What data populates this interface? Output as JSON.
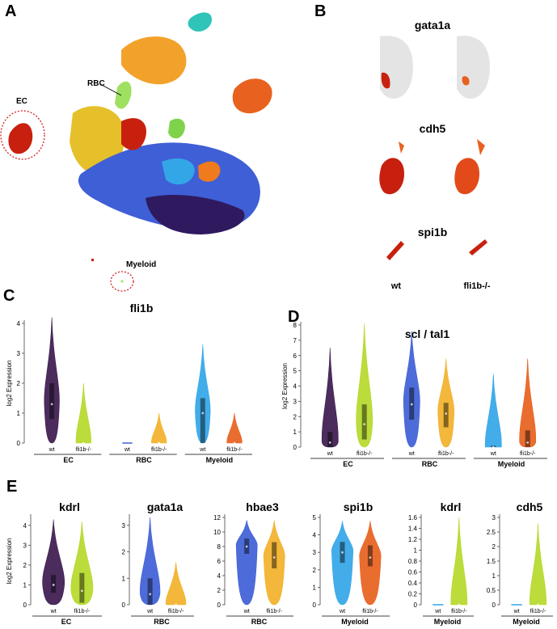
{
  "panels": {
    "A": {
      "label": "A",
      "annotations": {
        "ec": "EC",
        "rbc": "RBC",
        "myeloid": "Myeloid"
      }
    },
    "B": {
      "label": "B",
      "genes": [
        "gata1a",
        "cdh5",
        "spi1b"
      ],
      "conditions": [
        "wt",
        "fli1b-/-"
      ]
    },
    "C": {
      "label": "C"
    },
    "D": {
      "label": "D"
    },
    "E": {
      "label": "E"
    }
  },
  "colors": {
    "wt_EC": "#3d1a4f",
    "mut_EC": "#b5d92a",
    "wt_RBC": "#3f5fd6",
    "mut_RBC": "#f2b12a",
    "wt_Myeloid": "#33a6e8",
    "mut_Myeloid": "#e8611e",
    "umap_red": "#c8200e",
    "umap_gray": "#d8d8d8"
  },
  "chart_data": [
    {
      "type": "violin",
      "panel": "C",
      "title": "fli1b",
      "ylabel": "log2 Expression",
      "ylim": [
        0,
        4
      ],
      "yticks": [
        0,
        1,
        2,
        3,
        4
      ],
      "groups": [
        {
          "name": "EC",
          "violins": [
            {
              "label": "wt",
              "max": 4.2,
              "median": 1.3,
              "q1": 0.8,
              "q3": 2.0
            },
            {
              "label": "fli1b-/-",
              "max": 2.0,
              "median": 0.0,
              "q1": 0.0,
              "q3": 0.0
            }
          ]
        },
        {
          "name": "RBC",
          "violins": [
            {
              "label": "wt",
              "max": 0.0,
              "median": 0.0,
              "q1": 0.0,
              "q3": 0.0
            },
            {
              "label": "fli1b-/-",
              "max": 1.0,
              "median": 0.0,
              "q1": 0.0,
              "q3": 0.0
            }
          ]
        },
        {
          "name": "Myeloid",
          "violins": [
            {
              "label": "wt",
              "max": 3.3,
              "median": 1.0,
              "q1": 0.0,
              "q3": 1.5
            },
            {
              "label": "fli1b-/-",
              "max": 1.0,
              "median": 0.0,
              "q1": 0.0,
              "q3": 0.0
            }
          ]
        }
      ]
    },
    {
      "type": "violin",
      "panel": "D",
      "title": "scl / tal1",
      "ylabel": "log2 Expression",
      "ylim": [
        0,
        8
      ],
      "yticks": [
        0,
        1,
        2,
        3,
        4,
        5,
        6,
        7,
        8
      ],
      "groups": [
        {
          "name": "EC",
          "violins": [
            {
              "label": "wt",
              "max": 6.5,
              "median": 0.3,
              "q1": 0.0,
              "q3": 1.0
            },
            {
              "label": "fli1b-/-",
              "max": 8.1,
              "median": 1.5,
              "q1": 0.5,
              "q3": 2.8
            }
          ]
        },
        {
          "name": "RBC",
          "violins": [
            {
              "label": "wt",
              "max": 7.6,
              "median": 2.8,
              "q1": 1.8,
              "q3": 3.9
            },
            {
              "label": "fli1b-/-",
              "max": 5.8,
              "median": 2.2,
              "q1": 1.3,
              "q3": 2.9
            }
          ]
        },
        {
          "name": "Myeloid",
          "violins": [
            {
              "label": "wt",
              "max": 4.8,
              "median": 0.0,
              "q1": 0.0,
              "q3": 0.1
            },
            {
              "label": "fli1b-/-",
              "max": 5.8,
              "median": 0.3,
              "q1": 0.0,
              "q3": 1.1
            }
          ]
        }
      ]
    },
    {
      "type": "violin",
      "panel": "E",
      "title": "kdrl",
      "ylabel": "log2 Expression",
      "ylim": [
        0,
        4.4
      ],
      "yticks": [
        0,
        1,
        2,
        3,
        4
      ],
      "group": "EC",
      "violins": [
        {
          "label": "wt",
          "color": "wt_EC",
          "max": 4.3,
          "median": 1.0,
          "q1": 0.6,
          "q3": 1.5
        },
        {
          "label": "fli1b-/-",
          "color": "mut_EC",
          "max": 4.2,
          "median": 0.7,
          "q1": 0.1,
          "q3": 1.6
        }
      ]
    },
    {
      "type": "violin",
      "panel": "E",
      "title": "gata1a",
      "ylabel": "",
      "ylim": [
        0,
        3.3
      ],
      "yticks": [
        0,
        1,
        2,
        3
      ],
      "group": "RBC",
      "violins": [
        {
          "label": "wt",
          "color": "wt_RBC",
          "max": 3.3,
          "median": 0.4,
          "q1": 0.0,
          "q3": 1.0
        },
        {
          "label": "fli1b-/-",
          "color": "mut_RBC",
          "max": 1.6,
          "median": 0.0,
          "q1": 0.0,
          "q3": 0.0
        }
      ]
    },
    {
      "type": "violin",
      "panel": "E",
      "title": "hbae3",
      "ylabel": "",
      "ylim": [
        0,
        12
      ],
      "yticks": [
        0,
        2,
        4,
        6,
        8,
        10,
        12
      ],
      "group": "RBC",
      "violins": [
        {
          "label": "wt",
          "color": "wt_RBC",
          "max": 11.6,
          "median": 8.0,
          "q1": 7.0,
          "q3": 9.1
        },
        {
          "label": "fli1b-/-",
          "color": "mut_RBC",
          "max": 11.6,
          "median": 6.5,
          "q1": 5.0,
          "q3": 8.6
        }
      ]
    },
    {
      "type": "violin",
      "panel": "E",
      "title": "spi1b",
      "ylabel": "",
      "ylim": [
        0,
        5
      ],
      "yticks": [
        0,
        1,
        2,
        3,
        4,
        5
      ],
      "group": "Myeloid",
      "violins": [
        {
          "label": "wt",
          "color": "wt_Myeloid",
          "max": 4.8,
          "median": 3.0,
          "q1": 2.4,
          "q3": 3.6
        },
        {
          "label": "fli1b-/-",
          "color": "mut_Myeloid",
          "max": 4.8,
          "median": 2.7,
          "q1": 2.2,
          "q3": 3.4
        }
      ]
    },
    {
      "type": "violin",
      "panel": "E",
      "title": "kdrl",
      "ylabel": "",
      "ylim": [
        0,
        1.6
      ],
      "yticks": [
        0,
        0.2,
        0.4,
        0.6,
        0.8,
        1,
        1.2,
        1.4,
        1.6
      ],
      "group": "Myeloid",
      "violins": [
        {
          "label": "wt",
          "color": "wt_Myeloid",
          "max": 0.0,
          "median": 0.0,
          "q1": 0.0,
          "q3": 0.0
        },
        {
          "label": "fli1b-/-",
          "color": "mut_EC",
          "max": 1.6,
          "median": 0.0,
          "q1": 0.0,
          "q3": 0.0
        }
      ]
    },
    {
      "type": "violin",
      "panel": "E",
      "title": "cdh5",
      "ylabel": "",
      "ylim": [
        0,
        3.0
      ],
      "yticks": [
        0,
        0.5,
        1.0,
        1.5,
        2.0,
        2.5,
        3.0
      ],
      "group": "Myeloid",
      "violins": [
        {
          "label": "wt",
          "color": "wt_Myeloid",
          "max": 0.0,
          "median": 0.0,
          "q1": 0.0,
          "q3": 0.0
        },
        {
          "label": "fli1b-/-",
          "color": "mut_EC",
          "max": 2.8,
          "median": 0.0,
          "q1": 0.0,
          "q3": 0.0
        }
      ]
    }
  ]
}
